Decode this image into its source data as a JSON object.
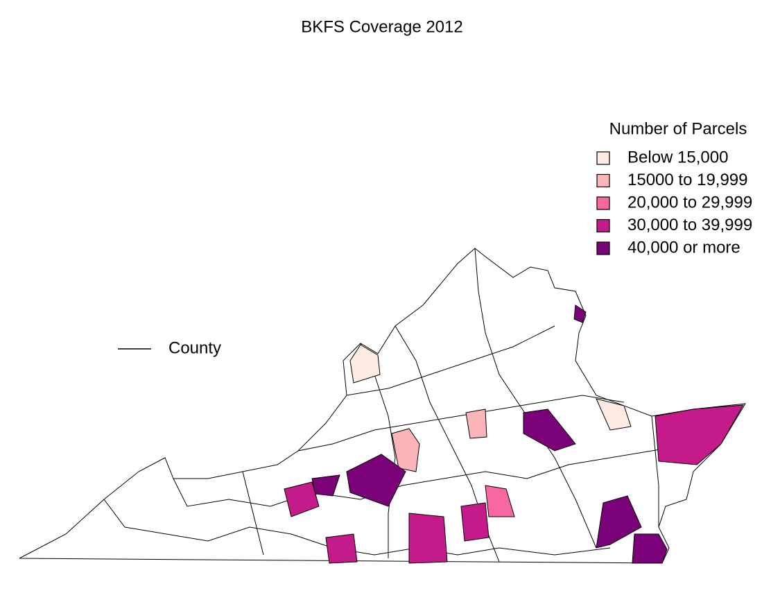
{
  "title": "BKFS Coverage 2012",
  "legend": {
    "title": "Number of Parcels",
    "items": [
      {
        "label": "Below 15,000",
        "color": "#feebe2"
      },
      {
        "label": "15000 to 19,999",
        "color": "#fbb4b9"
      },
      {
        "label": "20,000 to 29,999",
        "color": "#f768a1"
      },
      {
        "label": "30,000 to 39,999",
        "color": "#c51b8a"
      },
      {
        "label": "40,000 or more",
        "color": "#7a0177"
      }
    ]
  },
  "line_legend": {
    "label": "County"
  }
}
